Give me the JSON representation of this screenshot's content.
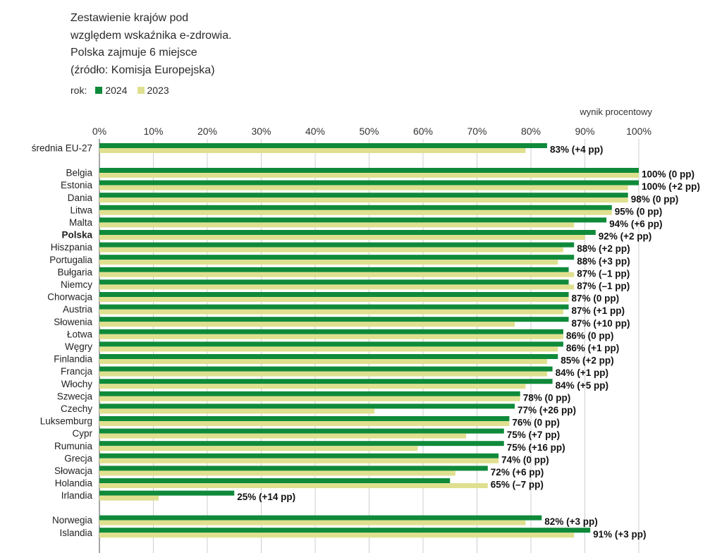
{
  "title_lines": [
    "Zestawienie krajów pod",
    "względem wskaźnika e-zdrowia.",
    "Polska zajmuje 6 miejsce",
    "(źródło: Komisja Europejska)"
  ],
  "legend": {
    "label": "rok:",
    "items": [
      {
        "name": "2024",
        "color": "#0f8a3a"
      },
      {
        "name": "2023",
        "color": "#dfe08f"
      }
    ]
  },
  "chart_data": {
    "type": "bar",
    "orientation": "horizontal",
    "axis_title": "wynik procentowy",
    "xlim": [
      0,
      100
    ],
    "ticks": [
      "0%",
      "10%",
      "20%",
      "30%",
      "40%",
      "50%",
      "60%",
      "70%",
      "80%",
      "90%",
      "100%"
    ],
    "grid": true,
    "series": [
      {
        "name": "2024",
        "color": "#0f8a3a"
      },
      {
        "name": "2023",
        "color": "#dfe08f"
      }
    ],
    "rows": [
      {
        "label": "średnia EU-27",
        "v2024": 83,
        "v2023": 79,
        "text": "83% (+4 pp)",
        "bold": false
      },
      {
        "label": "Belgia",
        "v2024": 100,
        "v2023": 100,
        "text": "100% (0 pp)",
        "bold": false
      },
      {
        "label": "Estonia",
        "v2024": 100,
        "v2023": 98,
        "text": "100% (+2 pp)",
        "bold": false
      },
      {
        "label": "Dania",
        "v2024": 98,
        "v2023": 98,
        "text": "98% (0 pp)",
        "bold": false
      },
      {
        "label": "Litwa",
        "v2024": 95,
        "v2023": 95,
        "text": "95% (0 pp)",
        "bold": false
      },
      {
        "label": "Malta",
        "v2024": 94,
        "v2023": 88,
        "text": "94% (+6 pp)",
        "bold": false
      },
      {
        "label": "Polska",
        "v2024": 92,
        "v2023": 90,
        "text": "92% (+2 pp)",
        "bold": true
      },
      {
        "label": "Hiszpania",
        "v2024": 88,
        "v2023": 86,
        "text": "88% (+2 pp)",
        "bold": false
      },
      {
        "label": "Portugalia",
        "v2024": 88,
        "v2023": 85,
        "text": "88% (+3 pp)",
        "bold": false
      },
      {
        "label": "Bułgaria",
        "v2024": 87,
        "v2023": 88,
        "text": "87% (–1 pp)",
        "bold": false
      },
      {
        "label": "Niemcy",
        "v2024": 87,
        "v2023": 88,
        "text": "87% (–1 pp)",
        "bold": false
      },
      {
        "label": "Chorwacja",
        "v2024": 87,
        "v2023": 87,
        "text": "87% (0 pp)",
        "bold": false
      },
      {
        "label": "Austria",
        "v2024": 87,
        "v2023": 86,
        "text": "87% (+1 pp)",
        "bold": false
      },
      {
        "label": "Słowenia",
        "v2024": 87,
        "v2023": 77,
        "text": "87% (+10 pp)",
        "bold": false
      },
      {
        "label": "Łotwa",
        "v2024": 86,
        "v2023": 86,
        "text": "86% (0 pp)",
        "bold": false
      },
      {
        "label": "Węgry",
        "v2024": 86,
        "v2023": 85,
        "text": "86% (+1 pp)",
        "bold": false
      },
      {
        "label": "Finlandia",
        "v2024": 85,
        "v2023": 83,
        "text": "85% (+2 pp)",
        "bold": false
      },
      {
        "label": "Francja",
        "v2024": 84,
        "v2023": 83,
        "text": "84% (+1 pp)",
        "bold": false
      },
      {
        "label": "Włochy",
        "v2024": 84,
        "v2023": 79,
        "text": "84% (+5 pp)",
        "bold": false
      },
      {
        "label": "Szwecja",
        "v2024": 78,
        "v2023": 78,
        "text": "78% (0 pp)",
        "bold": false
      },
      {
        "label": "Czechy",
        "v2024": 77,
        "v2023": 51,
        "text": "77% (+26 pp)",
        "bold": false
      },
      {
        "label": "Luksemburg",
        "v2024": 76,
        "v2023": 76,
        "text": "76% (0 pp)",
        "bold": false
      },
      {
        "label": "Cypr",
        "v2024": 75,
        "v2023": 68,
        "text": "75% (+7 pp)",
        "bold": false
      },
      {
        "label": "Rumunia",
        "v2024": 75,
        "v2023": 59,
        "text": "75% (+16 pp)",
        "bold": false
      },
      {
        "label": "Grecja",
        "v2024": 74,
        "v2023": 74,
        "text": "74% (0 pp)",
        "bold": false
      },
      {
        "label": "Słowacja",
        "v2024": 72,
        "v2023": 66,
        "text": "72% (+6 pp)",
        "bold": false
      },
      {
        "label": "Holandia",
        "v2024": 65,
        "v2023": 72,
        "text": "65% (–7 pp)",
        "bold": false
      },
      {
        "label": "Irlandia",
        "v2024": 25,
        "v2023": 11,
        "text": "25% (+14 pp)",
        "bold": false
      },
      {
        "label": "Norwegia",
        "v2024": 82,
        "v2023": 79,
        "text": "82% (+3 pp)",
        "bold": false
      },
      {
        "label": "Islandia",
        "v2024": 91,
        "v2023": 88,
        "text": "91% (+3 pp)",
        "bold": false
      }
    ]
  }
}
